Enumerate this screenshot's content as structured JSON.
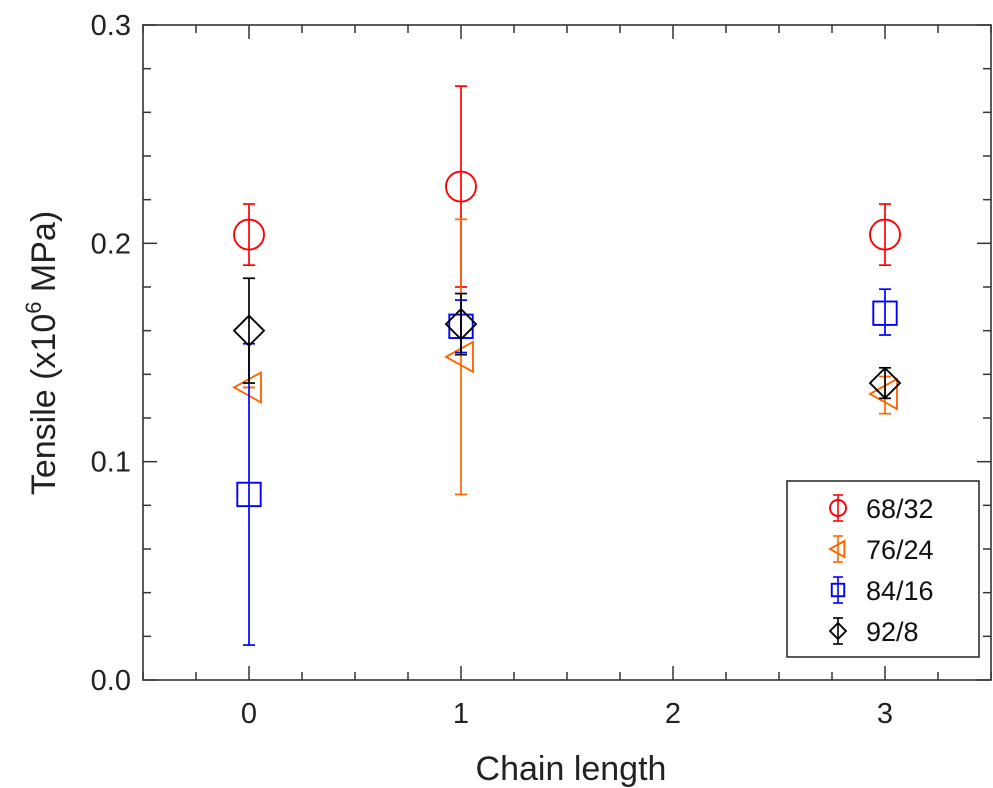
{
  "chart_data": {
    "type": "scatter",
    "xlabel": "Chain length",
    "ylabel_parts": [
      "Tensile (x10",
      "6",
      " MPa)"
    ],
    "xlim": [
      -0.5,
      3.5
    ],
    "ylim": [
      0,
      0.3
    ],
    "x_ticks": [
      "0",
      "1",
      "2",
      "3"
    ],
    "y_ticks": [
      "0.0",
      "0.1",
      "0.2",
      "0.3"
    ],
    "grid": false,
    "legend_position": "bottom-right",
    "series": [
      {
        "name": "68/32",
        "color": "#ff0000",
        "marker": "circle",
        "points": [
          {
            "x": 0,
            "y": 0.204,
            "err_low": 0.19,
            "err_high": 0.218
          },
          {
            "x": 1,
            "y": 0.226,
            "err_low": 0.18,
            "err_high": 0.272
          },
          {
            "x": 3,
            "y": 0.204,
            "err_low": 0.19,
            "err_high": 0.218
          }
        ]
      },
      {
        "name": "76/24",
        "color": "#ff6600",
        "marker": "triangle-left",
        "points": [
          {
            "x": 0,
            "y": 0.134,
            "err_low": 0.134,
            "err_high": 0.134
          },
          {
            "x": 1,
            "y": 0.148,
            "err_low": 0.085,
            "err_high": 0.211
          },
          {
            "x": 3,
            "y": 0.131,
            "err_low": 0.122,
            "err_high": 0.139
          }
        ]
      },
      {
        "name": "84/16",
        "color": "#0000ff",
        "marker": "square",
        "points": [
          {
            "x": 0,
            "y": 0.085,
            "err_low": 0.016,
            "err_high": 0.154
          },
          {
            "x": 1,
            "y": 0.162,
            "err_low": 0.15,
            "err_high": 0.174
          },
          {
            "x": 3,
            "y": 0.168,
            "err_low": 0.158,
            "err_high": 0.179
          }
        ]
      },
      {
        "name": "92/8",
        "color": "#000000",
        "marker": "diamond",
        "points": [
          {
            "x": 0,
            "y": 0.16,
            "err_low": 0.136,
            "err_high": 0.184
          },
          {
            "x": 1,
            "y": 0.163,
            "err_low": 0.149,
            "err_high": 0.177
          },
          {
            "x": 3,
            "y": 0.136,
            "err_low": 0.129,
            "err_high": 0.143
          }
        ]
      }
    ]
  }
}
